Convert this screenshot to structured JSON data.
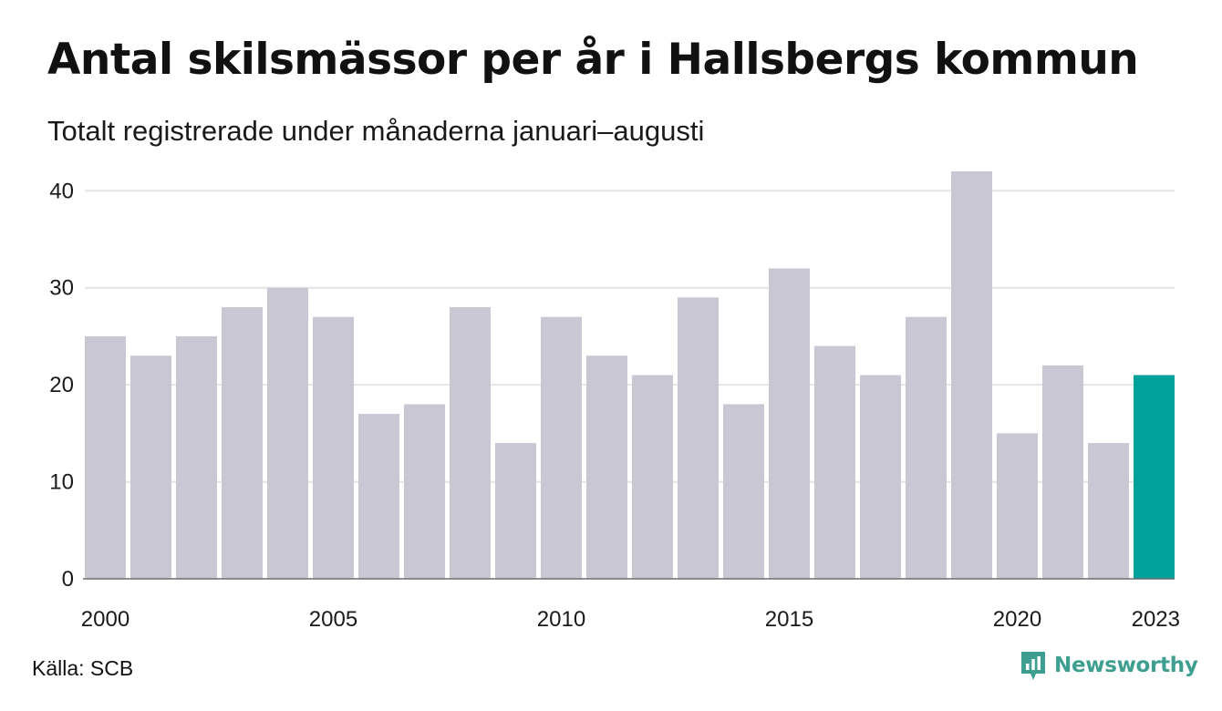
{
  "title": "Antal skilsmässor per år i Hallsbergs kommun",
  "subtitle": "Totalt registrerade under månaderna januari–augusti",
  "source": "Källa: SCB",
  "brand": {
    "name": "Newsworthy",
    "icon": "newsworthy-logo-icon",
    "color": "#3e9e90"
  },
  "colors": {
    "bar": "#c8c7d3",
    "highlight": "#00a19a",
    "grid": "#e4e4e8",
    "baseline": "#6e6e6e"
  },
  "chart_data": {
    "type": "bar",
    "categories": [
      "2000",
      "2001",
      "2002",
      "2003",
      "2004",
      "2005",
      "2006",
      "2007",
      "2008",
      "2009",
      "2010",
      "2011",
      "2012",
      "2013",
      "2014",
      "2015",
      "2016",
      "2017",
      "2018",
      "2019",
      "2020",
      "2021",
      "2022",
      "2023"
    ],
    "values": [
      25,
      23,
      25,
      28,
      30,
      27,
      17,
      18,
      28,
      14,
      27,
      23,
      21,
      29,
      18,
      32,
      24,
      21,
      27,
      42,
      15,
      22,
      14,
      21
    ],
    "highlight_index": 23,
    "x_tick_labels": [
      "2000",
      "2005",
      "2010",
      "2015",
      "2020",
      "2023"
    ],
    "y_ticks": [
      0,
      10,
      20,
      30,
      40
    ],
    "ylim": [
      0,
      42
    ],
    "grid": true,
    "legend": "none",
    "xlabel": "",
    "ylabel": ""
  }
}
